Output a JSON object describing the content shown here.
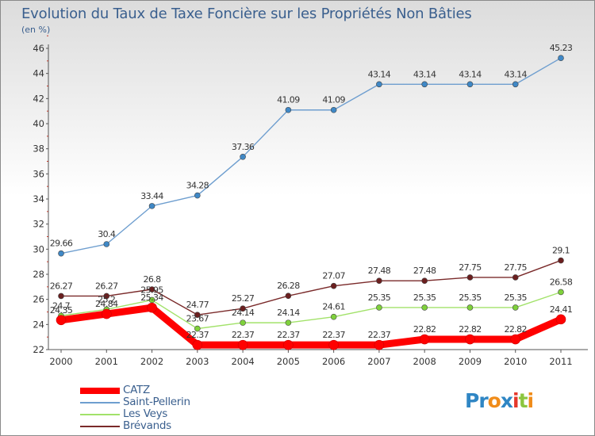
{
  "chart_data": {
    "type": "line",
    "title": "Evolution du Taux de Taxe Foncière sur les Propriétés Non Bâties",
    "ylabel": "(en %)",
    "xlabel": "",
    "categories": [
      "2000",
      "2001",
      "2002",
      "2003",
      "2004",
      "2005",
      "2006",
      "2007",
      "2008",
      "2009",
      "2010",
      "2011"
    ],
    "ylim": [
      22,
      46
    ],
    "yticks": [
      "22",
      "24",
      "26",
      "28",
      "30",
      "32",
      "34",
      "36",
      "38",
      "40",
      "42",
      "44",
      "46"
    ],
    "series": [
      {
        "name": "Saint-Pellerin",
        "color": "#6e9ecf",
        "marker": "#3f88c6",
        "values": [
          29.66,
          30.4,
          33.44,
          34.28,
          37.36,
          41.09,
          41.09,
          43.14,
          43.14,
          43.14,
          43.14,
          45.23
        ],
        "labels": [
          "29.66",
          "30.4",
          "33.44",
          "34.28",
          "37.36",
          "41.09",
          "41.09",
          "43.14",
          "43.14",
          "43.14",
          "43.14",
          "45.23"
        ]
      },
      {
        "name": "Brévands",
        "color": "#7a2a2a",
        "marker": "#6b1f1f",
        "values": [
          26.27,
          26.27,
          26.8,
          24.77,
          25.27,
          26.28,
          27.07,
          27.48,
          27.48,
          27.75,
          27.75,
          29.1
        ],
        "labels": [
          "26.27",
          "26.27",
          "26.8",
          "24.77",
          "25.27",
          "26.28",
          "27.07",
          "27.48",
          "27.48",
          "27.75",
          "27.75",
          "29.1"
        ]
      },
      {
        "name": "Les Veys",
        "color": "#a2e26a",
        "marker": "#7fd13b",
        "values": [
          24.7,
          25.2,
          25.95,
          23.67,
          24.14,
          24.14,
          24.61,
          25.35,
          25.35,
          25.35,
          25.35,
          26.58
        ],
        "labels": [
          "24.7",
          "25.2",
          "25.95",
          "23.67",
          "24.14",
          "24.14",
          "24.61",
          "25.35",
          "25.35",
          "25.35",
          "25.35",
          "26.58"
        ]
      },
      {
        "name": "CATZ",
        "color": "#ff0000",
        "marker": "#ff0000",
        "values": [
          24.35,
          24.84,
          25.34,
          22.37,
          22.37,
          22.37,
          22.37,
          22.37,
          22.82,
          22.82,
          22.82,
          24.41
        ],
        "labels": [
          "24.35",
          "24.84",
          "25.34",
          "22.37",
          "22.37",
          "22.37",
          "22.37",
          "22.37",
          "22.82",
          "22.82",
          "22.82",
          "24.41"
        ]
      }
    ],
    "legend": [
      "CATZ",
      "Saint-Pellerin",
      "Les Veys",
      "Brévands"
    ],
    "grid": false
  },
  "legend_items": [
    {
      "name": "CATZ",
      "color": "#ff0000"
    },
    {
      "name": "Saint-Pellerin",
      "color": "#6e9ecf"
    },
    {
      "name": "Les Veys",
      "color": "#a2e26a"
    },
    {
      "name": "Brévands",
      "color": "#7a2a2a"
    }
  ],
  "logo": {
    "text": "Proxiti",
    "letters": [
      "P",
      "r",
      "o",
      "x",
      "i",
      "t",
      "i"
    ],
    "colors": [
      "#2f86c4",
      "#2f86c4",
      "#f08c1a",
      "#2f86c4",
      "#e5382b",
      "#8cc63f",
      "#f08c1a"
    ]
  }
}
